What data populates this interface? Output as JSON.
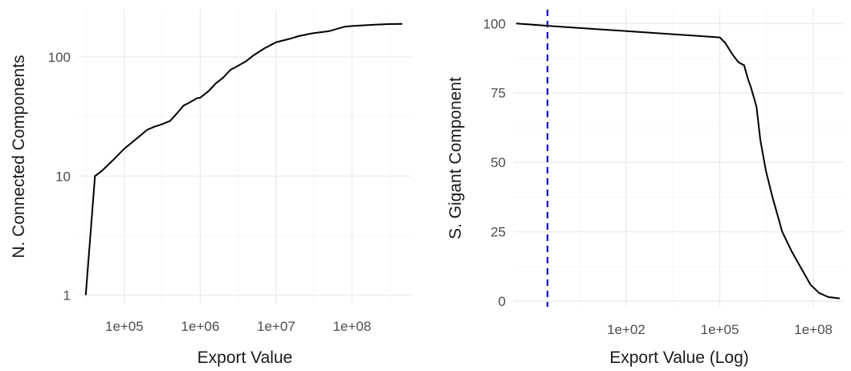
{
  "chart_data": [
    {
      "type": "line",
      "xlabel": "Export Value",
      "ylabel": "N. Connected Components",
      "x_scale": "log10",
      "y_scale": "log10",
      "xlim": [
        25000,
        600000000
      ],
      "ylim": [
        0.85,
        250
      ],
      "x_ticks": [
        {
          "value": 100000,
          "label": "1e+05"
        },
        {
          "value": 1000000,
          "label": "1e+06"
        },
        {
          "value": 10000000,
          "label": "1e+07"
        },
        {
          "value": 100000000,
          "label": "1e+08"
        }
      ],
      "y_ticks": [
        {
          "value": 1,
          "label": "1"
        },
        {
          "value": 10,
          "label": "10"
        },
        {
          "value": 100,
          "label": "100"
        }
      ],
      "grid": true,
      "line_color": "#000000",
      "series": [
        {
          "x": [
            31000,
            41000,
            50000,
            70000,
            100000,
            150000,
            200000,
            250000,
            300000,
            400000,
            500000,
            600000,
            700000,
            900000,
            1000000,
            1300000,
            1600000,
            2000000,
            2500000,
            3000000,
            4000000,
            5000000,
            7000000,
            10000000,
            15000000,
            20000000,
            30000000,
            50000000,
            80000000,
            100000000,
            200000000,
            300000000,
            460000000
          ],
          "y": [
            1,
            10,
            11,
            13.5,
            17,
            21,
            24.5,
            26,
            27,
            29,
            34,
            39,
            41,
            45,
            45.5,
            52,
            60,
            67,
            78,
            83,
            92,
            103,
            118,
            133,
            142,
            150,
            158,
            165,
            180,
            182,
            187,
            189,
            190
          ]
        }
      ]
    },
    {
      "type": "line",
      "xlabel": "Export Value (Log)",
      "ylabel": "S. Gigant Component",
      "x_scale": "log10",
      "y_scale": "linear",
      "xlim": [
        0.025,
        1000000000
      ],
      "ylim": [
        -2,
        105
      ],
      "x_ticks": [
        {
          "value": 100,
          "label": "1e+02"
        },
        {
          "value": 100000,
          "label": "1e+05"
        },
        {
          "value": 100000000,
          "label": "1e+08"
        }
      ],
      "y_ticks": [
        {
          "value": 0,
          "label": "0"
        },
        {
          "value": 25,
          "label": "25"
        },
        {
          "value": 50,
          "label": "50"
        },
        {
          "value": 75,
          "label": "75"
        },
        {
          "value": 100,
          "label": "100"
        }
      ],
      "grid": true,
      "line_color": "#000000",
      "reference_line": {
        "x": 0.3,
        "color": "#0000cc",
        "style": "dashed"
      },
      "series": [
        {
          "x": [
            0.03,
            0.5,
            100000,
            150000,
            250000,
            400000,
            600000,
            800000,
            1000000,
            1500000,
            2000000,
            3000000,
            5000000,
            8000000,
            10000000,
            20000000,
            40000000,
            80000000,
            150000000,
            300000000,
            700000000
          ],
          "y": [
            100,
            99,
            95,
            93,
            89,
            86,
            85,
            80,
            77,
            70,
            58,
            47,
            37,
            29,
            25,
            18,
            12,
            6,
            3,
            1.5,
            1
          ]
        }
      ]
    }
  ]
}
